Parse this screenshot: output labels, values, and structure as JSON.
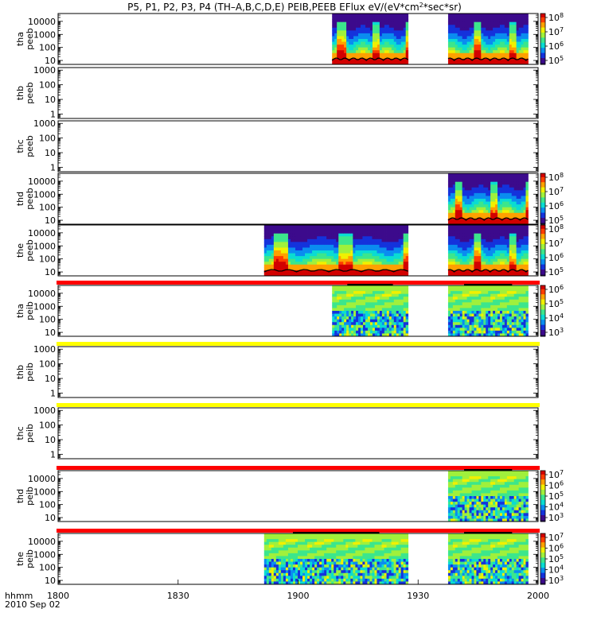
{
  "chart_data": {
    "type": "heatmap",
    "title": "P5, P1, P2, P3, P4 (TH–A,B,C,D,E) PEIB,PEEB EFlux eV/(eV*cm^2*sec*sr)",
    "title_main": "P5, P1, P2, P3, P4 (TH–A,B,C,D,E) PEIB,PEEB EFlux eV/(eV*cm",
    "title_sup": "2",
    "title_end": "*sec*sr)",
    "x_axis": {
      "label_hhmm": "hhmm",
      "date": "2010 Sep 02",
      "ticks": [
        "1800",
        "1830",
        "1900",
        "1930",
        "2000"
      ],
      "tick_minutes": [
        0,
        30,
        60,
        90,
        120
      ],
      "range_minutes": [
        0,
        120
      ]
    },
    "panels": [
      {
        "probe": "tha",
        "product": "peeb",
        "ylabel": [
          "tha",
          "peeb"
        ],
        "yticks": [
          "10000",
          "1000",
          "100",
          "10"
        ],
        "yrange": [
          5,
          40000
        ],
        "has_data": true,
        "colorbar": [
          "10^8",
          "10^7",
          "10^6",
          "10^5"
        ],
        "status_bar": null,
        "segments": [
          {
            "start": 68.5,
            "end": 87.5,
            "mode": "eesa"
          },
          {
            "start": 97.5,
            "end": 117.5,
            "mode": "eesa"
          }
        ]
      },
      {
        "probe": "thb",
        "product": "peeb",
        "ylabel": [
          "thb",
          "peeb"
        ],
        "yticks": [
          "1000",
          "100",
          "10",
          "1"
        ],
        "yrange": [
          0.5,
          1500
        ],
        "has_data": false,
        "colorbar": [],
        "status_bar": null,
        "segments": []
      },
      {
        "probe": "thc",
        "product": "peeb",
        "ylabel": [
          "thc",
          "peeb"
        ],
        "yticks": [
          "1000",
          "100",
          "10",
          "1"
        ],
        "yrange": [
          0.5,
          1500
        ],
        "has_data": false,
        "colorbar": [],
        "status_bar": null,
        "segments": []
      },
      {
        "probe": "thd",
        "product": "peeb",
        "ylabel": [
          "thd",
          "peeb"
        ],
        "yticks": [
          "10000",
          "1000",
          "100",
          "10"
        ],
        "yrange": [
          5,
          40000
        ],
        "has_data": true,
        "colorbar": [
          "10^8",
          "10^7",
          "10^6",
          "10^5"
        ],
        "status_bar": null,
        "segments": [
          {
            "start": 97.5,
            "end": 117.5,
            "mode": "eesa"
          }
        ]
      },
      {
        "probe": "the",
        "product": "peeb",
        "ylabel": [
          "the",
          "peeb"
        ],
        "yticks": [
          "10000",
          "1000",
          "100",
          "10"
        ],
        "yrange": [
          5,
          40000
        ],
        "has_data": true,
        "colorbar": [
          "10^8",
          "10^7",
          "10^6",
          "10^5"
        ],
        "status_bar": null,
        "segments": [
          {
            "start": 51.5,
            "end": 87.5,
            "mode": "eesa"
          },
          {
            "start": 97.5,
            "end": 117.5,
            "mode": "eesa"
          }
        ]
      },
      {
        "probe": "tha",
        "product": "peib",
        "ylabel": [
          "tha",
          "peib"
        ],
        "yticks": [
          "10000",
          "1000",
          "100",
          "10"
        ],
        "yrange": [
          5,
          40000
        ],
        "has_data": true,
        "colorbar": [
          "10^6",
          "10^5",
          "10^4",
          "10^3"
        ],
        "status_bar": "#ff0000",
        "segments": [
          {
            "start": 68.5,
            "end": 87.5,
            "mode": "iesa"
          },
          {
            "start": 97.5,
            "end": 117.5,
            "mode": "iesa"
          }
        ]
      },
      {
        "probe": "thb",
        "product": "peib",
        "ylabel": [
          "thb",
          "peib"
        ],
        "yticks": [
          "1000",
          "100",
          "10",
          "1"
        ],
        "yrange": [
          0.5,
          1500
        ],
        "has_data": false,
        "colorbar": [],
        "status_bar": "#ffff00",
        "segments": []
      },
      {
        "probe": "thc",
        "product": "peib",
        "ylabel": [
          "thc",
          "peib"
        ],
        "yticks": [
          "1000",
          "100",
          "10",
          "1"
        ],
        "yrange": [
          0.5,
          1500
        ],
        "has_data": false,
        "colorbar": [],
        "status_bar": "#ffff00",
        "segments": []
      },
      {
        "probe": "thd",
        "product": "peib",
        "ylabel": [
          "thd",
          "peib"
        ],
        "yticks": [
          "10000",
          "1000",
          "100",
          "10"
        ],
        "yrange": [
          5,
          40000
        ],
        "has_data": true,
        "colorbar": [
          "10^7",
          "10^6",
          "10^5",
          "10^4",
          "10^3"
        ],
        "status_bar": "#ff0000",
        "segments": [
          {
            "start": 97.5,
            "end": 117.5,
            "mode": "iesa"
          }
        ]
      },
      {
        "probe": "the",
        "product": "peib",
        "ylabel": [
          "the",
          "peib"
        ],
        "yticks": [
          "10000",
          "1000",
          "100",
          "10"
        ],
        "yrange": [
          5,
          40000
        ],
        "has_data": true,
        "colorbar": [
          "10^7",
          "10^6",
          "10^5",
          "10^4",
          "10^3"
        ],
        "status_bar": "#ff0000",
        "segments": [
          {
            "start": 51.5,
            "end": 87.5,
            "mode": "iesa"
          },
          {
            "start": 97.5,
            "end": 117.5,
            "mode": "iesa"
          }
        ]
      }
    ],
    "colormap": [
      "#1e0a46",
      "#3c0a8c",
      "#1432dc",
      "#0a8cf0",
      "#0adcd2",
      "#3ce68c",
      "#a0f03c",
      "#f0f000",
      "#ffa000",
      "#ff3c00",
      "#d20000"
    ]
  }
}
